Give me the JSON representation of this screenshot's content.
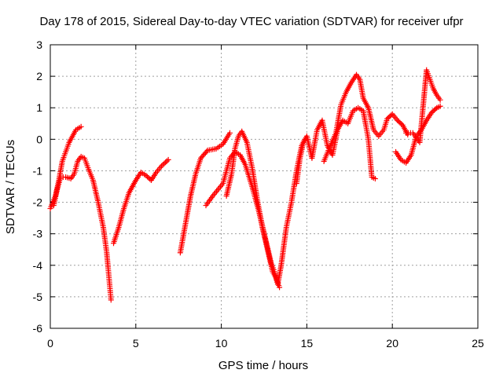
{
  "chart_data": {
    "type": "scatter",
    "title": "Day 178 of 2015, Sidereal Day-to-day VTEC variation (SDTVAR) for receiver ufpr",
    "xlabel": "GPS time / hours",
    "ylabel": "SDTVAR / TECUs",
    "xlim": [
      0,
      25
    ],
    "ylim": [
      -6,
      3
    ],
    "x_ticks": [
      0,
      5,
      10,
      15,
      20,
      25
    ],
    "y_ticks": [
      -6,
      -5,
      -4,
      -3,
      -2,
      -1,
      0,
      1,
      2,
      3
    ],
    "grid": true,
    "legend": "none",
    "marker": "+",
    "color": "#ff0000",
    "series": [
      {
        "segments": [
          [
            [
              0.0,
              -2.2
            ],
            [
              0.3,
              -1.8
            ],
            [
              0.5,
              -1.3
            ],
            [
              0.7,
              -0.7
            ],
            [
              0.9,
              -0.4
            ],
            [
              1.1,
              -0.1
            ],
            [
              1.3,
              0.1
            ],
            [
              1.5,
              0.3
            ],
            [
              1.8,
              0.4
            ]
          ],
          [
            [
              0.2,
              -2.1
            ],
            [
              0.4,
              -1.6
            ],
            [
              0.6,
              -1.2
            ],
            [
              0.9,
              -1.2
            ],
            [
              1.2,
              -1.25
            ],
            [
              1.4,
              -1.1
            ],
            [
              1.6,
              -0.7
            ],
            [
              1.8,
              -0.55
            ],
            [
              2.0,
              -0.6
            ],
            [
              2.2,
              -0.9
            ],
            [
              2.5,
              -1.3
            ],
            [
              2.8,
              -2.0
            ],
            [
              3.1,
              -2.8
            ],
            [
              3.3,
              -3.6
            ],
            [
              3.45,
              -4.5
            ],
            [
              3.55,
              -5.1
            ]
          ],
          [
            [
              3.7,
              -3.3
            ],
            [
              4.0,
              -2.8
            ],
            [
              4.3,
              -2.2
            ],
            [
              4.6,
              -1.7
            ],
            [
              5.0,
              -1.3
            ],
            [
              5.3,
              -1.05
            ],
            [
              5.6,
              -1.15
            ],
            [
              5.9,
              -1.3
            ],
            [
              6.2,
              -1.05
            ],
            [
              6.5,
              -0.85
            ],
            [
              6.9,
              -0.65
            ]
          ],
          [
            [
              7.6,
              -3.6
            ],
            [
              7.8,
              -3.0
            ],
            [
              8.0,
              -2.4
            ],
            [
              8.2,
              -1.8
            ],
            [
              8.5,
              -1.1
            ],
            [
              8.8,
              -0.6
            ],
            [
              9.2,
              -0.35
            ],
            [
              9.7,
              -0.3
            ],
            [
              10.1,
              -0.15
            ],
            [
              10.5,
              0.2
            ]
          ],
          [
            [
              9.1,
              -2.1
            ],
            [
              9.5,
              -1.8
            ],
            [
              9.8,
              -1.6
            ],
            [
              10.1,
              -1.4
            ],
            [
              10.3,
              -1.0
            ],
            [
              10.5,
              -0.6
            ],
            [
              10.8,
              -0.4
            ],
            [
              11.1,
              -0.5
            ],
            [
              11.4,
              -0.8
            ],
            [
              11.8,
              -1.5
            ],
            [
              12.2,
              -2.3
            ],
            [
              12.6,
              -3.2
            ],
            [
              12.9,
              -3.9
            ],
            [
              13.1,
              -4.2
            ],
            [
              13.3,
              -4.6
            ],
            [
              13.5,
              -4.0
            ],
            [
              13.8,
              -2.8
            ],
            [
              14.1,
              -2.0
            ],
            [
              14.4,
              -1.0
            ],
            [
              14.7,
              -0.2
            ],
            [
              14.9,
              0.0
            ]
          ],
          [
            [
              10.3,
              -1.8
            ],
            [
              10.6,
              -1.1
            ],
            [
              10.8,
              -0.3
            ],
            [
              11.0,
              0.1
            ],
            [
              11.2,
              0.25
            ],
            [
              11.5,
              -0.1
            ],
            [
              11.8,
              -0.9
            ],
            [
              12.1,
              -1.9
            ],
            [
              12.4,
              -2.8
            ],
            [
              12.7,
              -3.5
            ],
            [
              13.0,
              -4.2
            ],
            [
              13.2,
              -4.4
            ],
            [
              13.4,
              -4.7
            ]
          ],
          [
            [
              14.4,
              -1.4
            ],
            [
              14.6,
              -0.6
            ],
            [
              14.8,
              -0.1
            ],
            [
              15.0,
              0.1
            ],
            [
              15.3,
              -0.6
            ],
            [
              15.6,
              0.3
            ],
            [
              15.9,
              0.6
            ],
            [
              16.2,
              -0.2
            ],
            [
              16.5,
              -0.5
            ],
            [
              16.8,
              0.3
            ],
            [
              17.1,
              0.6
            ],
            [
              17.4,
              0.5
            ],
            [
              17.7,
              0.9
            ],
            [
              18.0,
              1.0
            ],
            [
              18.3,
              0.9
            ],
            [
              18.6,
              0.0
            ],
            [
              18.8,
              -1.2
            ],
            [
              19.0,
              -1.25
            ]
          ],
          [
            [
              16.0,
              -0.7
            ],
            [
              16.3,
              -0.3
            ],
            [
              16.7,
              0.2
            ],
            [
              17.0,
              1.1
            ],
            [
              17.3,
              1.5
            ],
            [
              17.6,
              1.8
            ],
            [
              17.9,
              2.05
            ],
            [
              18.1,
              1.9
            ],
            [
              18.3,
              1.3
            ],
            [
              18.6,
              1.0
            ],
            [
              18.9,
              0.3
            ],
            [
              19.2,
              0.1
            ],
            [
              19.5,
              0.3
            ],
            [
              19.7,
              0.65
            ],
            [
              20.0,
              0.8
            ],
            [
              20.3,
              0.6
            ],
            [
              20.6,
              0.45
            ],
            [
              20.9,
              0.15
            ]
          ],
          [
            [
              20.2,
              -0.4
            ],
            [
              20.5,
              -0.65
            ],
            [
              20.8,
              -0.75
            ],
            [
              21.1,
              -0.5
            ],
            [
              21.4,
              0.1
            ],
            [
              21.7,
              0.3
            ],
            [
              22.0,
              0.6
            ],
            [
              22.3,
              0.85
            ],
            [
              22.6,
              1.0
            ],
            [
              22.8,
              1.05
            ]
          ],
          [
            [
              20.8,
              0.2
            ],
            [
              21.2,
              0.2
            ],
            [
              21.6,
              -0.1
            ],
            [
              22.0,
              2.2
            ],
            [
              22.2,
              1.9
            ],
            [
              22.4,
              1.6
            ],
            [
              22.6,
              1.4
            ],
            [
              22.8,
              1.25
            ]
          ]
        ]
      }
    ]
  }
}
